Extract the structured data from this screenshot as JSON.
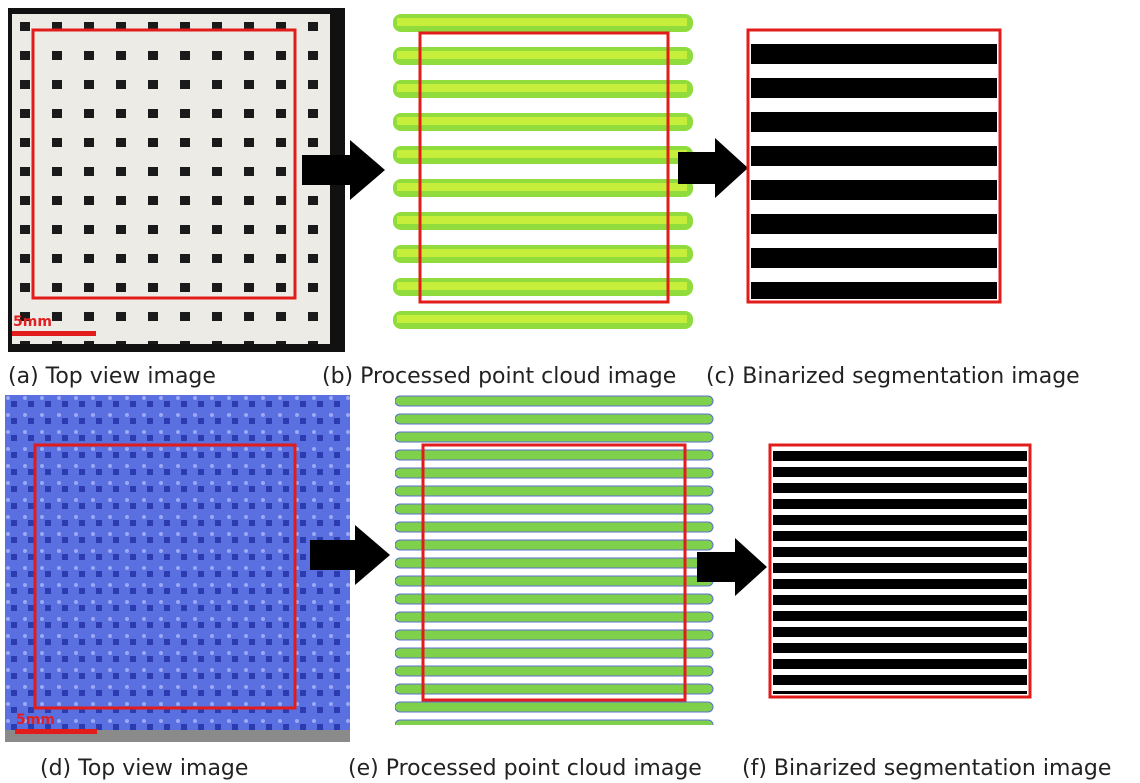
{
  "panels": [
    {
      "caption": "(a) Top view image",
      "scale_bar": "5mm"
    },
    {
      "caption": "(b) Processed point cloud image"
    },
    {
      "caption": "(c) Binarized segmentation image"
    },
    {
      "caption": "(d) Top view image",
      "scale_bar": "5mm"
    },
    {
      "caption": "(e) Processed point cloud image"
    },
    {
      "caption": "(f) Binarized segmentation image"
    }
  ]
}
